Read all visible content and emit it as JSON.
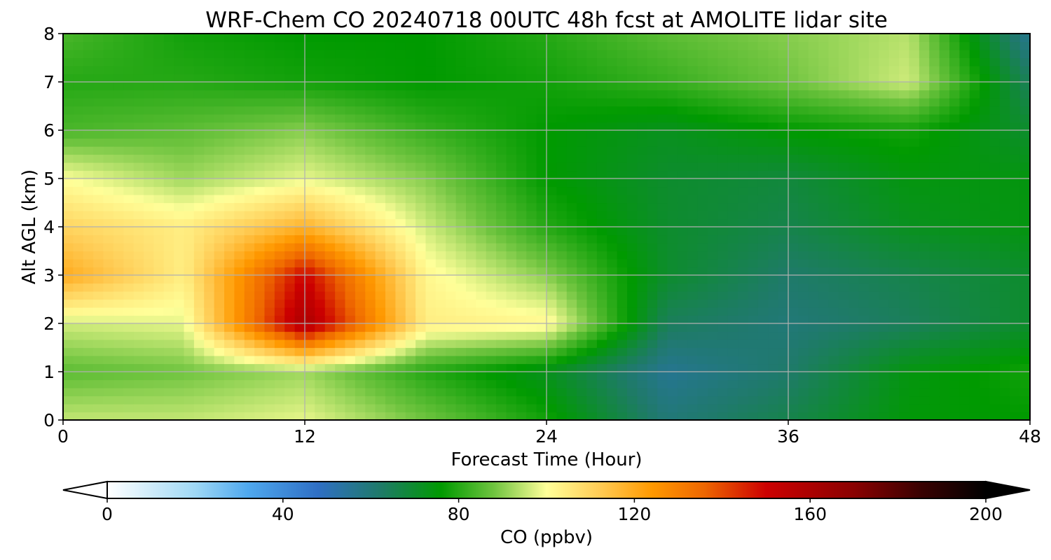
{
  "chart_data": {
    "type": "heatmap",
    "title": "WRF-Chem CO  20240718 00UTC 48h fcst at AMOLITE lidar site",
    "xlabel": "Forecast Time (Hour)",
    "ylabel": "Alt AGL (km)",
    "xlim": [
      0,
      48
    ],
    "ylim": [
      0,
      8
    ],
    "xticks": [
      "0",
      "12",
      "24",
      "36",
      "48"
    ],
    "yticks": [
      "0",
      "1",
      "2",
      "3",
      "4",
      "5",
      "6",
      "7",
      "8"
    ],
    "grid": true,
    "x": [
      0,
      6,
      12,
      18,
      24,
      30,
      36,
      42,
      48
    ],
    "y": [
      0,
      1,
      2,
      3,
      4,
      5,
      6,
      7,
      8
    ],
    "z": [
      [
        95,
        95,
        98,
        88,
        78,
        60,
        66,
        75,
        76
      ],
      [
        86,
        88,
        92,
        80,
        72,
        56,
        62,
        74,
        78
      ],
      [
        96,
        98,
        160,
        104,
        102,
        64,
        60,
        64,
        70
      ],
      [
        120,
        104,
        150,
        102,
        90,
        70,
        62,
        66,
        70
      ],
      [
        110,
        104,
        118,
        96,
        80,
        70,
        66,
        72,
        74
      ],
      [
        100,
        92,
        98,
        90,
        76,
        70,
        68,
        74,
        74
      ],
      [
        84,
        86,
        90,
        82,
        76,
        72,
        76,
        78,
        70
      ],
      [
        80,
        80,
        78,
        76,
        78,
        82,
        88,
        96,
        64
      ],
      [
        84,
        78,
        76,
        76,
        80,
        86,
        90,
        94,
        56
      ]
    ],
    "colorbar": {
      "label": "CO  (ppbv)",
      "ticks": [
        "0",
        "40",
        "80",
        "120",
        "160",
        "200"
      ],
      "range": [
        0,
        200
      ],
      "extend": "both",
      "stops": [
        {
          "v": 0,
          "c": "#ffffff"
        },
        {
          "v": 20,
          "c": "#9fd8f5"
        },
        {
          "v": 32,
          "c": "#4fa8ee"
        },
        {
          "v": 48,
          "c": "#2f6fc4"
        },
        {
          "v": 62,
          "c": "#1f7a6a"
        },
        {
          "v": 76,
          "c": "#009a00"
        },
        {
          "v": 88,
          "c": "#6fc43f"
        },
        {
          "v": 100,
          "c": "#ffff99"
        },
        {
          "v": 112,
          "c": "#ffcc55"
        },
        {
          "v": 124,
          "c": "#ff9900"
        },
        {
          "v": 136,
          "c": "#ee6600"
        },
        {
          "v": 150,
          "c": "#cc0000"
        },
        {
          "v": 170,
          "c": "#8a0000"
        },
        {
          "v": 185,
          "c": "#3a0000"
        },
        {
          "v": 200,
          "c": "#000000"
        }
      ]
    }
  }
}
